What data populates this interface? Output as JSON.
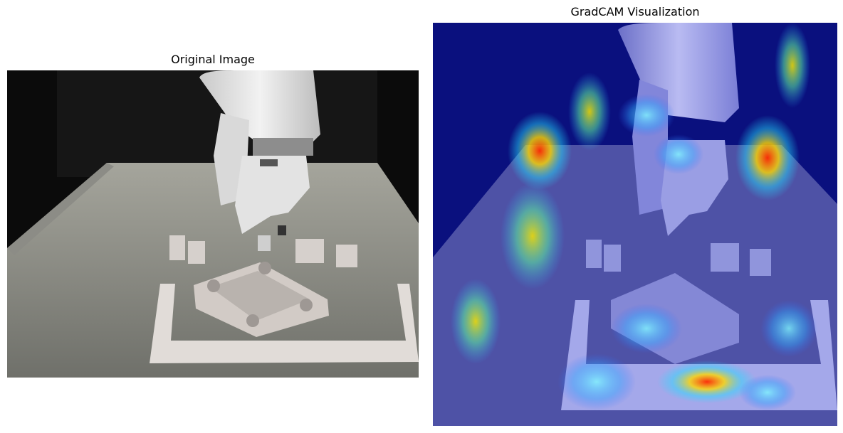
{
  "panels": [
    {
      "title": "Original Image"
    },
    {
      "title": "GradCAM Visualization"
    }
  ]
}
